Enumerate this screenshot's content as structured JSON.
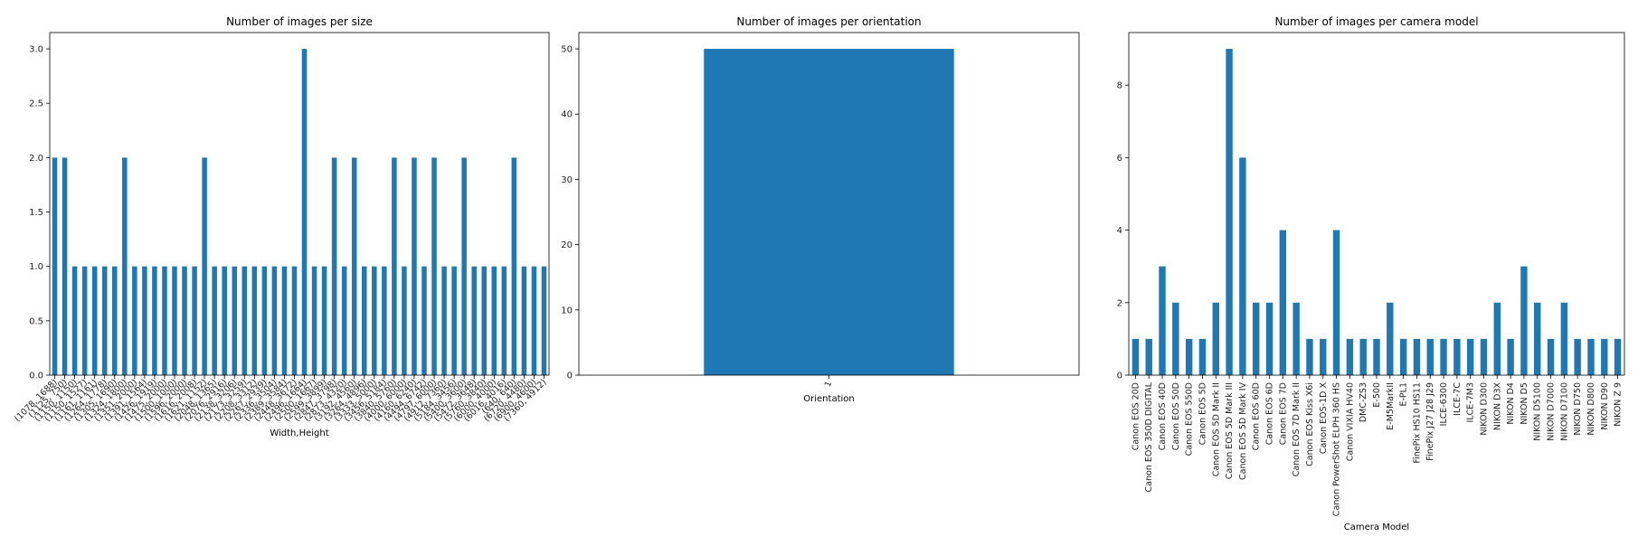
{
  "chart_data": [
    {
      "type": "bar",
      "title": "Number of images per size",
      "xlabel": "Width,Height",
      "ylabel": "",
      "ylim": [
        0,
        3.15
      ],
      "yticks": [
        "0.0",
        "0.5",
        "1.0",
        "1.5",
        "2.0",
        "2.5",
        "3.0"
      ],
      "ytick_values": [
        0,
        0.5,
        1,
        1.5,
        2,
        2.5,
        3
      ],
      "color": "#1f77b4",
      "categories": [
        "(1078, 1688)",
        "(1125, 750)",
        "(1150, 1150)",
        "(1150, 1527)",
        "(1161, 1161)",
        "(1264, 1778)",
        "(1305, 1690)",
        "(1324, 1800)",
        "(1351, 2000)",
        "(1391, 1564)",
        "(1426, 1919)",
        "(1475, 2000)",
        "(1500, 1000)",
        "(1596, 2000)",
        "(1616, 2008)",
        "(1621, 1152)",
        "(2048, 1365)",
        "(2076, 2916)",
        "(2138, 3206)",
        "(2173, 3259)",
        "(2208, 3312)",
        "(2267, 2939)",
        "(2336, 3504)",
        "(2389, 3584)",
        "(2448, 3672)",
        "(2496, 1664)",
        "(2500, 1667)",
        "(2599, 3899)",
        "(2847, 3798)",
        "(2873, 4320)",
        "(3192, 4560)",
        "(3264, 4896)",
        "(3333, 5000)",
        "(3456, 5184)",
        "(3840, 5760)",
        "(4000, 6000)",
        "(4160, 6240)",
        "(4494, 6742)",
        "(4797, 6000)",
        "(4912, 7360)",
        "(5184, 3456)",
        "(5400, 3600)",
        "(5472, 3648)",
        "(5760, 3840)",
        "(6000, 4000)",
        "(6016, 4016)",
        "(640, 640)",
        "(6720, 4480)",
        "(6900, 4600)",
        "(7360, 4912)"
      ],
      "values": [
        2,
        2,
        1,
        1,
        1,
        1,
        1,
        2,
        1,
        1,
        1,
        1,
        1,
        1,
        1,
        2,
        1,
        1,
        1,
        1,
        1,
        1,
        1,
        1,
        1,
        3,
        1,
        1,
        2,
        1,
        2,
        1,
        1,
        1,
        2,
        1,
        2,
        1,
        2,
        1,
        1,
        2,
        1,
        1,
        1,
        1,
        2,
        1,
        1,
        1
      ]
    },
    {
      "type": "bar",
      "title": "Number of images per orientation",
      "xlabel": "Orientation",
      "ylabel": "",
      "ylim": [
        0,
        52.5
      ],
      "yticks": [
        "0",
        "10",
        "20",
        "30",
        "40",
        "50"
      ],
      "ytick_values": [
        0,
        10,
        20,
        30,
        40,
        50
      ],
      "color": "#1f77b4",
      "categories": [
        "1"
      ],
      "values": [
        50
      ]
    },
    {
      "type": "bar",
      "title": "Number of images per camera model",
      "xlabel": "Camera Model",
      "ylabel": "",
      "ylim": [
        0,
        9.45
      ],
      "yticks": [
        "0",
        "2",
        "4",
        "6",
        "8"
      ],
      "ytick_values": [
        0,
        2,
        4,
        6,
        8
      ],
      "color": "#1f77b4",
      "categories": [
        "Canon EOS 20D",
        "Canon EOS 350D DIGITAL",
        "Canon EOS 40D",
        "Canon EOS 50D",
        "Canon EOS 550D",
        "Canon EOS 5D",
        "Canon EOS 5D Mark II",
        "Canon EOS 5D Mark III",
        "Canon EOS 5D Mark IV",
        "Canon EOS 60D",
        "Canon EOS 6D",
        "Canon EOS 7D",
        "Canon EOS 7D Mark II",
        "Canon EOS Kiss X6i",
        "Canon EOS-1D X",
        "Canon PowerShot ELPH 360 HS",
        "Canon VIXIA HV40",
        "DMC-ZS3",
        "E-500",
        "E-M5MarkII",
        "E-PL1",
        "FinePix HS10 HS11",
        "FinePix J27 J28 J29",
        "ILCE-6300",
        "ILCE-7C",
        "ILCE-7M3",
        "NIKON D300",
        "NIKON D3X",
        "NIKON D4",
        "NIKON D5",
        "NIKON D5100",
        "NIKON D7000",
        "NIKON D7100",
        "NIKON D750",
        "NIKON D800",
        "NIKON D90",
        "NIKON Z 9"
      ],
      "values": [
        1,
        1,
        3,
        2,
        1,
        1,
        2,
        9,
        6,
        2,
        2,
        4,
        2,
        1,
        1,
        4,
        1,
        1,
        1,
        2,
        1,
        1,
        1,
        1,
        1,
        1,
        1,
        2,
        1,
        3,
        2,
        1,
        2,
        1,
        1,
        1,
        1
      ]
    }
  ]
}
